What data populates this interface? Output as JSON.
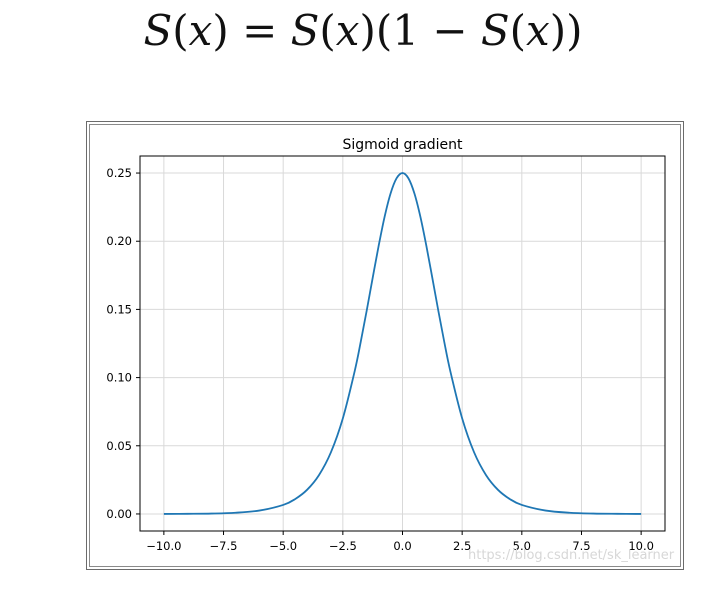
{
  "formula": {
    "s1": "S",
    "x1": "x",
    "eq": " = ",
    "s2": "S",
    "x2": "x",
    "one": "(1 − ",
    "s3": "S",
    "x3": "x",
    "close": "))"
  },
  "watermark": "https://blog.csdn.net/sk_learner",
  "colors": {
    "line": "#1f77b4",
    "grid": "#d9d9d9",
    "axis": "#000000"
  },
  "chart_data": {
    "type": "line",
    "title": "Sigmoid gradient",
    "xlabel": "",
    "ylabel": "",
    "xlim": [
      -11.0,
      11.0
    ],
    "ylim": [
      -0.0125,
      0.2625
    ],
    "grid": true,
    "xticks": [
      -10.0,
      -7.5,
      -5.0,
      -2.5,
      0.0,
      2.5,
      5.0,
      7.5,
      10.0
    ],
    "xtick_labels": [
      "−10.0",
      "−7.5",
      "−5.0",
      "−2.5",
      "0.0",
      "2.5",
      "5.0",
      "7.5",
      "10.0"
    ],
    "yticks": [
      0.0,
      0.05,
      0.1,
      0.15,
      0.2,
      0.25
    ],
    "ytick_labels": [
      "0.00",
      "0.05",
      "0.10",
      "0.15",
      "0.20",
      "0.25"
    ],
    "series": [
      {
        "x": [
          -10,
          -9,
          -8,
          -7,
          -6,
          -5,
          -4.5,
          -4,
          -3.5,
          -3,
          -2.5,
          -2,
          -1.75,
          -1.5,
          -1.25,
          -1,
          -0.75,
          -0.5,
          -0.25,
          0,
          0.25,
          0.5,
          0.75,
          1,
          1.25,
          1.5,
          1.75,
          2,
          2.5,
          3,
          3.5,
          4,
          4.5,
          5,
          6,
          7,
          8,
          9,
          10
        ],
        "y": [
          0.0,
          0.0001,
          0.0003,
          0.0009,
          0.0025,
          0.0066,
          0.0109,
          0.0177,
          0.0285,
          0.0452,
          0.0701,
          0.105,
          0.1262,
          0.1491,
          0.1731,
          0.1966,
          0.2179,
          0.235,
          0.2461,
          0.25,
          0.2461,
          0.235,
          0.2179,
          0.1966,
          0.1731,
          0.1491,
          0.1262,
          0.105,
          0.0701,
          0.0452,
          0.0285,
          0.0177,
          0.0109,
          0.0066,
          0.0025,
          0.0009,
          0.0003,
          0.0001,
          0.0
        ]
      }
    ]
  }
}
